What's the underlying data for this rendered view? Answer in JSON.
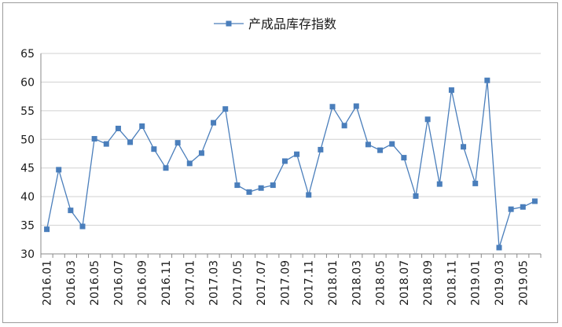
{
  "chart_data": {
    "type": "line",
    "title": "",
    "xlabel": "",
    "ylabel": "",
    "legend": {
      "placement": "top-center"
    },
    "grid": true,
    "ylim": [
      30,
      65
    ],
    "yticks": [
      30,
      35,
      40,
      45,
      50,
      55,
      60,
      65
    ],
    "x": [
      "2016.01",
      "2016.02",
      "2016.03",
      "2016.04",
      "2016.05",
      "2016.06",
      "2016.07",
      "2016.08",
      "2016.09",
      "2016.10",
      "2016.11",
      "2016.12",
      "2017.01",
      "2017.02",
      "2017.03",
      "2017.04",
      "2017.05",
      "2017.06",
      "2017.07",
      "2017.08",
      "2017.09",
      "2017.10",
      "2017.11",
      "2017.12",
      "2018.01",
      "2018.02",
      "2018.03",
      "2018.04",
      "2018.05",
      "2018.06",
      "2018.07",
      "2018.08",
      "2018.09",
      "2018.10",
      "2018.11",
      "2018.12",
      "2019.01",
      "2019.02",
      "2019.03",
      "2019.04",
      "2019.05",
      "2019.06"
    ],
    "xtick_labels": [
      "2016.01",
      "2016.03",
      "2016.05",
      "2016.07",
      "2016.09",
      "2016.11",
      "2017.01",
      "2017.03",
      "2017.05",
      "2017.07",
      "2017.09",
      "2017.11",
      "2018.01",
      "2018.03",
      "2018.05",
      "2018.07",
      "2018.09",
      "2018.11",
      "2019.01",
      "2019.03",
      "2019.05"
    ],
    "series": [
      {
        "name": "产成品库存指数",
        "color": "#4a7ebb",
        "marker": "square",
        "values": [
          34.3,
          44.7,
          37.6,
          34.8,
          50.1,
          49.2,
          51.9,
          49.5,
          52.3,
          48.3,
          45.0,
          49.4,
          45.8,
          47.6,
          52.9,
          55.3,
          42.0,
          40.8,
          41.5,
          42.0,
          46.2,
          47.4,
          40.3,
          48.2,
          55.7,
          52.4,
          55.8,
          49.1,
          48.1,
          49.2,
          46.8,
          40.1,
          53.5,
          42.2,
          58.6,
          48.7,
          42.3,
          60.3,
          31.1,
          37.8,
          38.2,
          39.2
        ]
      }
    ]
  }
}
